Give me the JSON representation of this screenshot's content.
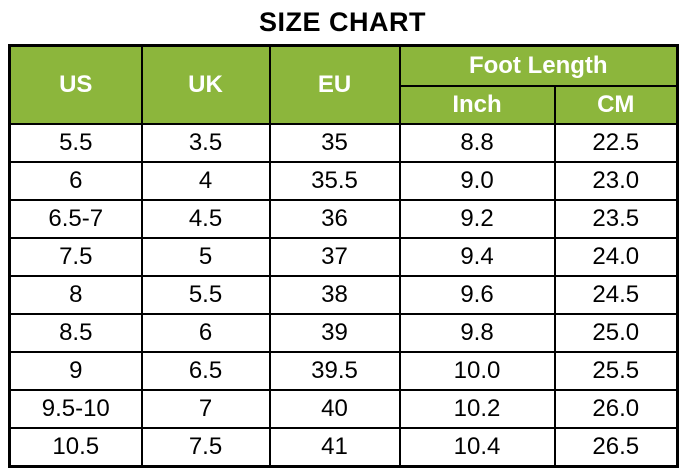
{
  "title": "SIZE CHART",
  "colors": {
    "header_bg": "#8CB63C",
    "header_text": "#FFFFFF",
    "border": "#000000",
    "cell_text": "#000000",
    "background": "#FFFFFF"
  },
  "chart_data": {
    "type": "table",
    "title": "SIZE CHART",
    "columns": [
      "US",
      "UK",
      "EU",
      "Inch",
      "CM"
    ],
    "header_group": {
      "label": "Foot Length",
      "spans": [
        "Inch",
        "CM"
      ]
    },
    "headers": {
      "us": "US",
      "uk": "UK",
      "eu": "EU",
      "foot_length": "Foot Length",
      "inch": "Inch",
      "cm": "CM"
    },
    "rows": [
      [
        "5.5",
        "3.5",
        "35",
        "8.8",
        "22.5"
      ],
      [
        "6",
        "4",
        "35.5",
        "9.0",
        "23.0"
      ],
      [
        "6.5-7",
        "4.5",
        "36",
        "9.2",
        "23.5"
      ],
      [
        "7.5",
        "5",
        "37",
        "9.4",
        "24.0"
      ],
      [
        "8",
        "5.5",
        "38",
        "9.6",
        "24.5"
      ],
      [
        "8.5",
        "6",
        "39",
        "9.8",
        "25.0"
      ],
      [
        "9",
        "6.5",
        "39.5",
        "10.0",
        "25.5"
      ],
      [
        "9.5-10",
        "7",
        "40",
        "10.2",
        "26.0"
      ],
      [
        "10.5",
        "7.5",
        "41",
        "10.4",
        "26.5"
      ]
    ]
  }
}
